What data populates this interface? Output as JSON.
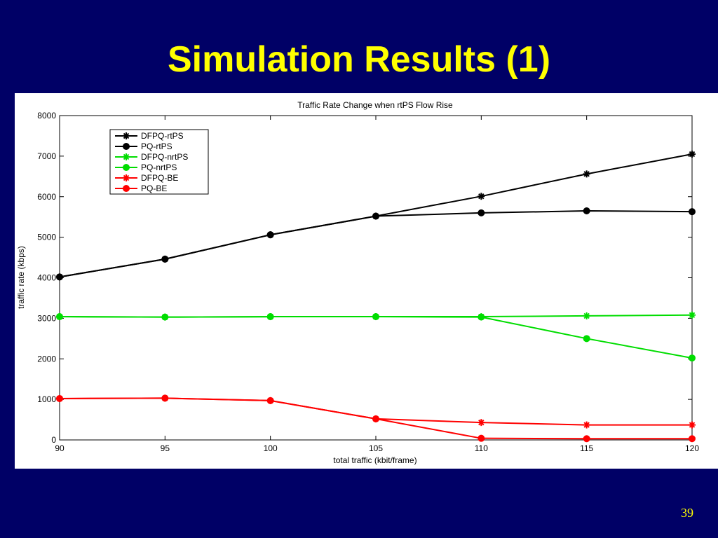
{
  "slide": {
    "title": "Simulation Results (1)",
    "page_number": "39"
  },
  "chart_data": {
    "type": "line",
    "title": "Traffic Rate Change when rtPS Flow Rise",
    "xlabel": "total traffic (kbit/frame)",
    "ylabel": "traffic rate (kbps)",
    "x": [
      90,
      95,
      100,
      105,
      110,
      115,
      120
    ],
    "x_ticks": [
      "90",
      "95",
      "100",
      "105",
      "110",
      "115",
      "120"
    ],
    "y_ticks": [
      "0",
      "1000",
      "2000",
      "3000",
      "4000",
      "5000",
      "6000",
      "7000",
      "8000"
    ],
    "xlim": [
      90,
      120
    ],
    "ylim": [
      0,
      8000
    ],
    "grid": false,
    "legend_position": "top-left",
    "series": [
      {
        "name": "DFPQ-rtPS",
        "color": "#000000",
        "marker": "star",
        "values": [
          4020,
          4460,
          5060,
          5520,
          6010,
          6560,
          7050
        ]
      },
      {
        "name": "PQ-rtPS",
        "color": "#000000",
        "marker": "circle",
        "values": [
          4020,
          4460,
          5060,
          5520,
          5600,
          5650,
          5630
        ]
      },
      {
        "name": "DFPQ-nrtPS",
        "color": "#00dd00",
        "marker": "star",
        "values": [
          3040,
          3030,
          3040,
          3040,
          3040,
          3060,
          3080
        ]
      },
      {
        "name": "PQ-nrtPS",
        "color": "#00dd00",
        "marker": "circle",
        "values": [
          3040,
          3030,
          3040,
          3040,
          3030,
          2500,
          2020
        ]
      },
      {
        "name": "DFPQ-BE",
        "color": "#ff0000",
        "marker": "star",
        "values": [
          1020,
          1030,
          970,
          520,
          430,
          370,
          370
        ]
      },
      {
        "name": "PQ-BE",
        "color": "#ff0000",
        "marker": "circle",
        "values": [
          1020,
          1030,
          970,
          520,
          40,
          30,
          30
        ]
      }
    ]
  }
}
